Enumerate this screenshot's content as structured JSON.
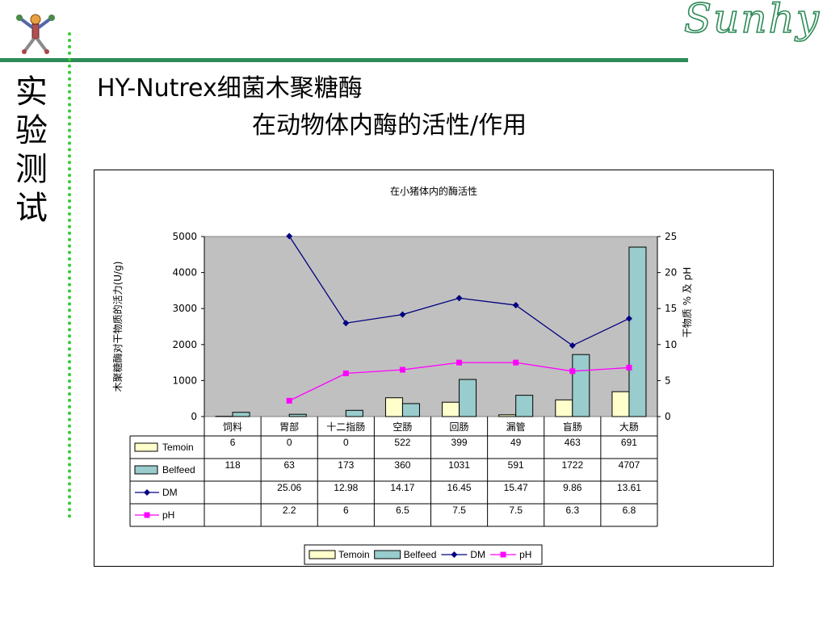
{
  "slide": {
    "brand": "Sunhy",
    "side_title": "实验测试",
    "title_line1": "HY-Nutrex细菌木聚糖酶",
    "title_line2": "在动物体内酶的活性/作用",
    "logo_icon": "molecule-figure-icon"
  },
  "chart_data": {
    "type": "bar",
    "title": "在小猪体内的酶活性",
    "categories": [
      "饲料",
      "胃部",
      "十二指肠",
      "空肠",
      "回肠",
      "漏管",
      "盲肠",
      "大肠"
    ],
    "ylabel": "木聚糖酶对干物质的活力(U/g)",
    "y2label": "干物质 % 及 pH",
    "ylim": [
      0,
      5000
    ],
    "y2lim": [
      0,
      25
    ],
    "yticks": [
      "0",
      "1000",
      "2000",
      "3000",
      "4000",
      "5000"
    ],
    "y2ticks": [
      "0",
      "5",
      "10",
      "15",
      "20",
      "25"
    ],
    "plot_bg": "#c0c0c0",
    "legend_position": "bottom",
    "series": [
      {
        "name": "Temoin",
        "kind": "bar",
        "axis": "left",
        "color": "#ffffcc",
        "values": [
          6,
          0,
          0,
          522,
          399,
          49,
          463,
          691
        ],
        "labels": [
          "6",
          "0",
          "0",
          "522",
          "399",
          "49",
          "463",
          "691"
        ]
      },
      {
        "name": "Belfeed",
        "kind": "bar",
        "axis": "left",
        "color": "#99cccc",
        "values": [
          118,
          63,
          173,
          360,
          1031,
          591,
          1722,
          4707
        ],
        "labels": [
          "118",
          "63",
          "173",
          "360",
          "1031",
          "591",
          "1722",
          "4707"
        ]
      },
      {
        "name": "DM",
        "kind": "line",
        "axis": "right",
        "color": "#000080",
        "marker": "diamond",
        "values": [
          null,
          25.06,
          12.98,
          14.17,
          16.45,
          15.47,
          9.86,
          13.61
        ],
        "labels": [
          "",
          "25.06",
          "12.98",
          "14.17",
          "16.45",
          "15.47",
          "9.86",
          "13.61"
        ]
      },
      {
        "name": "pH",
        "kind": "line",
        "axis": "right",
        "color": "#ff00ff",
        "marker": "square",
        "values": [
          null,
          2.2,
          6,
          6.5,
          7.5,
          7.5,
          6.3,
          6.8
        ],
        "labels": [
          "",
          "2.2",
          "6",
          "6.5",
          "7.5",
          "7.5",
          "6.3",
          "6.8"
        ]
      }
    ]
  }
}
